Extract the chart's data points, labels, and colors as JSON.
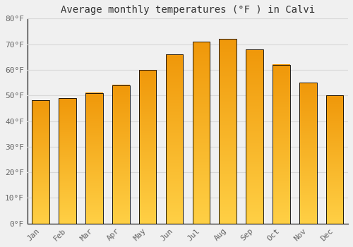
{
  "title": "Average monthly temperatures (°F ) in Calvi",
  "months": [
    "Jan",
    "Feb",
    "Mar",
    "Apr",
    "May",
    "Jun",
    "Jul",
    "Aug",
    "Sep",
    "Oct",
    "Nov",
    "Dec"
  ],
  "values": [
    48,
    49,
    51,
    54,
    60,
    66,
    71,
    72,
    68,
    62,
    55,
    50
  ],
  "bar_color_bottom": "#FFD045",
  "bar_color_top": "#F0980A",
  "ylim": [
    0,
    80
  ],
  "yticks": [
    0,
    10,
    20,
    30,
    40,
    50,
    60,
    70,
    80
  ],
  "background_color": "#f0f0f0",
  "grid_color": "#d8d8d8",
  "title_fontsize": 10,
  "tick_fontsize": 8,
  "bar_width": 0.65
}
